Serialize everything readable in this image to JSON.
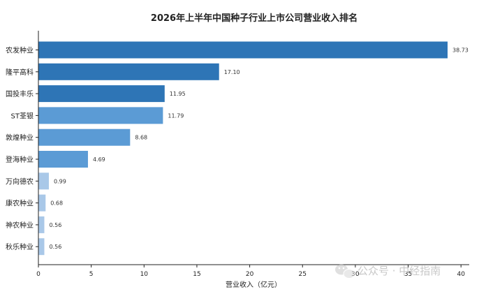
{
  "chart_data": {
    "type": "bar",
    "orientation": "horizontal",
    "title": "2026年上半年中国种子行业上市公司营业收入排名",
    "xlabel": "营业收入（亿元）",
    "ylabel": "",
    "categories": [
      "农发种业",
      "隆平高科",
      "国投丰乐",
      "ST荃银",
      "敦煌种业",
      "登海种业",
      "万向德农",
      "康农种业",
      "神农种业",
      "秋乐种业"
    ],
    "values": [
      38.73,
      17.1,
      11.95,
      11.79,
      8.68,
      4.69,
      0.99,
      0.68,
      0.56,
      0.56
    ],
    "value_labels": [
      "38.73",
      "17.10",
      "11.95",
      "11.79",
      "8.68",
      "4.69",
      "0.99",
      "0.68",
      "0.56",
      "0.56"
    ],
    "bar_colors": [
      "#2e75b6",
      "#2e75b6",
      "#2e75b6",
      "#5b9bd5",
      "#5b9bd5",
      "#5b9bd5",
      "#a9c8e8",
      "#a9c8e8",
      "#a9c8e8",
      "#a9c8e8"
    ],
    "xlim": [
      0,
      40
    ],
    "xticks": [
      0,
      5,
      10,
      15,
      20,
      25,
      30,
      35,
      40
    ],
    "grid": false
  },
  "watermark": {
    "text": "公众号 · 中经指南",
    "icon": "wechat-icon"
  }
}
